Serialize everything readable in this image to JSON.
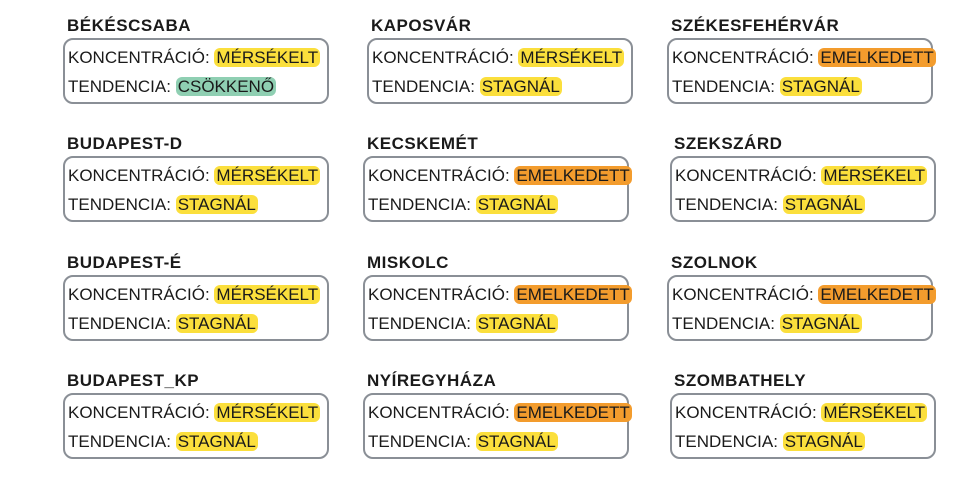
{
  "colors": {
    "moderate": "#fbdf3c",
    "elevated": "#f39c2d",
    "decreasing": "#8fcfb2",
    "border": "#8a8f96"
  },
  "labels": {
    "concentration": "KONCENTRÁCIÓ:",
    "trend": "TENDENCIA:"
  },
  "stations": [
    {
      "city": "BÉKÉSCSABA",
      "concentration": "MÉRSÉKELT",
      "concentration_level": "yellow",
      "trend": "CSÖKKENŐ",
      "trend_level": "green"
    },
    {
      "city": "KAPOSVÁR",
      "concentration": "MÉRSÉKELT",
      "concentration_level": "yellow",
      "trend": "STAGNÁL",
      "trend_level": "yellow"
    },
    {
      "city": "SZÉKESFEHÉRVÁR",
      "concentration": "EMELKEDETT",
      "concentration_level": "orange",
      "trend": "STAGNÁL",
      "trend_level": "yellow"
    },
    {
      "city": "BUDAPEST-D",
      "concentration": "MÉRSÉKELT",
      "concentration_level": "yellow",
      "trend": "STAGNÁL",
      "trend_level": "yellow"
    },
    {
      "city": "KECSKEMÉT",
      "concentration": "EMELKEDETT",
      "concentration_level": "orange",
      "trend": "STAGNÁL",
      "trend_level": "yellow"
    },
    {
      "city": "SZEKSZÁRD",
      "concentration": "MÉRSÉKELT",
      "concentration_level": "yellow",
      "trend": "STAGNÁL",
      "trend_level": "yellow"
    },
    {
      "city": "BUDAPEST-É",
      "concentration": "MÉRSÉKELT",
      "concentration_level": "yellow",
      "trend": "STAGNÁL",
      "trend_level": "yellow"
    },
    {
      "city": "MISKOLC",
      "concentration": "EMELKEDETT",
      "concentration_level": "orange",
      "trend": "STAGNÁL",
      "trend_level": "yellow"
    },
    {
      "city": "SZOLNOK",
      "concentration": "EMELKEDETT",
      "concentration_level": "orange",
      "trend": "STAGNÁL",
      "trend_level": "yellow"
    },
    {
      "city": "BUDAPEST_KP",
      "concentration": "MÉRSÉKELT",
      "concentration_level": "yellow",
      "trend": "STAGNÁL",
      "trend_level": "yellow"
    },
    {
      "city": "NYÍREGYHÁZA",
      "concentration": "EMELKEDETT",
      "concentration_level": "orange",
      "trend": "STAGNÁL",
      "trend_level": "yellow"
    },
    {
      "city": "SZOMBATHELY",
      "concentration": "MÉRSÉKELT",
      "concentration_level": "yellow",
      "trend": "STAGNÁL",
      "trend_level": "yellow"
    }
  ]
}
